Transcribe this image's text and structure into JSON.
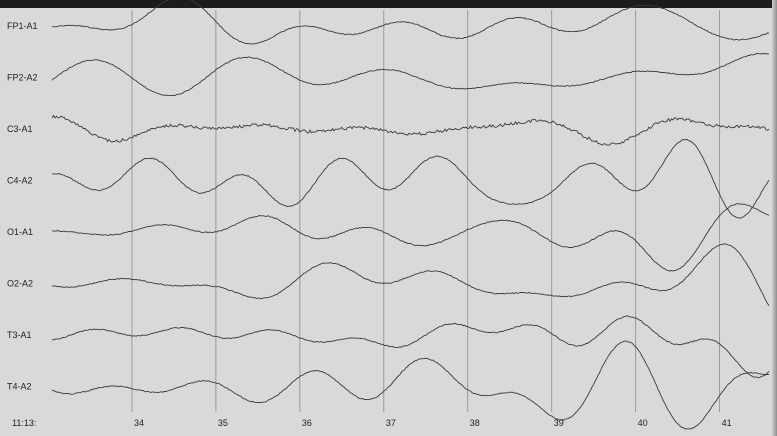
{
  "chart_data": {
    "type": "line",
    "title": "",
    "xlabel": "",
    "ylabel": "",
    "time_prefix": "11:13:",
    "x_ticks": [
      "34",
      "35",
      "36",
      "37",
      "38",
      "39",
      "40",
      "41"
    ],
    "xlim": [
      33,
      41.6
    ],
    "grid": "vertical lines at each second",
    "channels": [
      {
        "name": "FP1-A1"
      },
      {
        "name": "FP2-A2"
      },
      {
        "name": "C3-A1"
      },
      {
        "name": "C4-A2"
      },
      {
        "name": "O1-A1"
      },
      {
        "name": "O2-A2"
      },
      {
        "name": "T3-A1"
      },
      {
        "name": "T4-A2"
      }
    ],
    "colors": {
      "trace": "#3a3a3a",
      "grid": "#8a8a8a",
      "paper": "#d9d9d7"
    }
  }
}
